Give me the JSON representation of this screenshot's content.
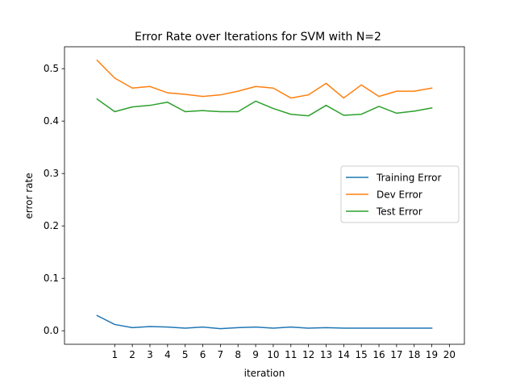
{
  "chart_data": {
    "type": "line",
    "title": "Error Rate over Iterations for SVM with N=2",
    "xlabel": "iteration",
    "ylabel": "error rate",
    "xlim": [
      -1.85,
      20.85
    ],
    "ylim": [
      -0.0258,
      0.5418
    ],
    "xticks": [
      1,
      2,
      3,
      4,
      5,
      6,
      7,
      8,
      9,
      10,
      11,
      12,
      13,
      14,
      15,
      16,
      17,
      18,
      19,
      20
    ],
    "yticks": [
      0.0,
      0.1,
      0.2,
      0.3,
      0.4,
      0.5
    ],
    "ytick_labels": [
      "0.0",
      "0.1",
      "0.2",
      "0.3",
      "0.4",
      "0.5"
    ],
    "x": [
      0,
      1,
      2,
      3,
      4,
      5,
      6,
      7,
      8,
      9,
      10,
      11,
      12,
      13,
      14,
      15,
      16,
      17,
      18,
      19
    ],
    "grid": false,
    "legend_position": "center-right",
    "series": [
      {
        "name": "Training Error",
        "color": "#1f77b4",
        "values": [
          0.029,
          0.012,
          0.006,
          0.008,
          0.007,
          0.005,
          0.007,
          0.004,
          0.006,
          0.007,
          0.005,
          0.007,
          0.005,
          0.006,
          0.005,
          0.005,
          0.005,
          0.005,
          0.005,
          0.005
        ]
      },
      {
        "name": "Dev Error",
        "color": "#ff7f0e",
        "values": [
          0.516,
          0.482,
          0.463,
          0.466,
          0.454,
          0.451,
          0.447,
          0.45,
          0.457,
          0.466,
          0.463,
          0.444,
          0.45,
          0.472,
          0.444,
          0.469,
          0.447,
          0.457,
          0.457,
          0.463
        ]
      },
      {
        "name": "Test Error",
        "color": "#2ca02c",
        "values": [
          0.442,
          0.418,
          0.427,
          0.43,
          0.436,
          0.418,
          0.42,
          0.418,
          0.418,
          0.438,
          0.424,
          0.413,
          0.41,
          0.43,
          0.411,
          0.413,
          0.428,
          0.415,
          0.419,
          0.425
        ]
      }
    ]
  }
}
